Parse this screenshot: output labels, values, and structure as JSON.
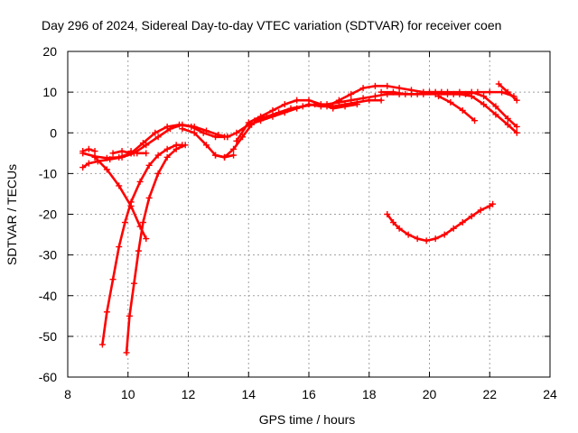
{
  "chart_data": {
    "type": "scatter",
    "title": "Day 296 of 2024, Sidereal Day-to-day VTEC variation (SDTVAR) for receiver coen",
    "xlabel": "GPS time / hours",
    "ylabel": "SDTVAR / TECUs",
    "xlim": [
      8,
      24
    ],
    "ylim": [
      -60,
      20
    ],
    "xticks": [
      8,
      10,
      12,
      14,
      16,
      18,
      20,
      22,
      24
    ],
    "yticks": [
      -60,
      -50,
      -40,
      -30,
      -20,
      -10,
      0,
      10,
      20
    ],
    "xtick_labels": [
      "8",
      "10",
      "12",
      "14",
      "16",
      "18",
      "20",
      "22",
      "24"
    ],
    "ytick_labels": [
      "-60",
      "-50",
      "-40",
      "-30",
      "-20",
      "-10",
      "0",
      "10",
      "20"
    ],
    "grid": true,
    "marker": "+",
    "color": "#ff0000",
    "series": [
      {
        "name": "satellite-1",
        "x": [
          8.5,
          8.7,
          9.0,
          9.4,
          9.8,
          10.2,
          10.6,
          11.0,
          11.4,
          11.8,
          12.2,
          12.6,
          13.0,
          13.3
        ],
        "y": [
          -8.5,
          -7.5,
          -7,
          -6.5,
          -6,
          -5,
          -3,
          -1,
          1,
          2,
          1.5,
          0.5,
          -0.5,
          -1
        ]
      },
      {
        "name": "satellite-2",
        "x": [
          8.5,
          8.9,
          9.3,
          9.7,
          10.1,
          10.5,
          10.9,
          11.3,
          11.7,
          12.1,
          12.5,
          12.9,
          13.2
        ],
        "y": [
          -5,
          -5.8,
          -6.2,
          -6,
          -5,
          -2.5,
          0,
          1.5,
          2,
          1.5,
          0,
          -1,
          -1
        ]
      },
      {
        "name": "satellite-3",
        "x": [
          8.5,
          8.7,
          8.9
        ],
        "y": [
          -4.5,
          -4,
          -4.5
        ]
      },
      {
        "name": "satellite-4",
        "x": [
          9.5,
          9.8,
          10.1
        ],
        "y": [
          -5,
          -4.5,
          -5
        ]
      },
      {
        "name": "satellite-5",
        "x": [
          10.1,
          10.3,
          10.6
        ],
        "y": [
          -4.5,
          -5,
          -5
        ]
      },
      {
        "name": "satellite-6",
        "x": [
          8.9,
          9.3,
          9.7,
          10.1,
          10.4,
          10.6
        ],
        "y": [
          -6,
          -9,
          -13,
          -18,
          -23,
          -26
        ]
      },
      {
        "name": "satellite-7",
        "x": [
          9.15,
          9.3,
          9.5,
          9.7,
          9.9,
          10.1,
          10.4,
          10.7,
          11.0,
          11.3,
          11.6,
          11.8
        ],
        "y": [
          -52,
          -44,
          -36,
          -28,
          -22,
          -17,
          -12,
          -8,
          -5.5,
          -4,
          -3,
          -3
        ]
      },
      {
        "name": "satellite-8",
        "x": [
          9.95,
          10.05,
          10.2,
          10.35,
          10.5,
          10.7,
          11.0,
          11.3,
          11.6,
          11.9
        ],
        "y": [
          -54,
          -45,
          -37,
          -29,
          -22,
          -16,
          -10,
          -6,
          -4,
          -3
        ]
      },
      {
        "name": "satellite-9",
        "x": [
          11.8,
          12.2,
          12.6,
          12.9,
          13.2,
          13.5,
          13.8,
          14.1
        ],
        "y": [
          1,
          0,
          -3,
          -5.5,
          -6,
          -4,
          -1,
          2
        ]
      },
      {
        "name": "satellite-10",
        "x": [
          12.9,
          13.2,
          13.5
        ],
        "y": [
          -5.5,
          -6,
          -5.5
        ]
      },
      {
        "name": "satellite-11",
        "x": [
          13.3,
          13.6,
          14.0,
          14.4,
          14.8,
          15.2,
          15.6,
          16.0,
          16.4,
          16.8,
          17.2,
          17.6,
          18.0,
          18.4
        ],
        "y": [
          -1,
          0,
          2,
          3,
          4,
          5,
          6,
          7,
          6.5,
          6.5,
          7,
          7.5,
          8,
          8
        ]
      },
      {
        "name": "satellite-12",
        "x": [
          13.6,
          14.0,
          14.4,
          14.8,
          15.2,
          15.6,
          16.0,
          16.4,
          16.8,
          17.2,
          17.6
        ],
        "y": [
          -2,
          2.5,
          4,
          5.5,
          7,
          8,
          8,
          7,
          6,
          6.5,
          7
        ]
      },
      {
        "name": "satellite-13",
        "x": [
          14.2,
          14.6,
          15.0,
          15.4,
          15.8,
          16.2,
          16.6,
          17.0,
          17.4,
          17.8,
          18.2,
          18.6,
          19.0,
          19.4,
          19.8,
          20.2,
          20.6,
          21.0,
          21.4,
          21.8,
          22.2,
          22.6,
          22.9
        ],
        "y": [
          3,
          4,
          5,
          6,
          6.5,
          7,
          7,
          7.5,
          8,
          8.5,
          9,
          9.5,
          9.5,
          9.5,
          9.5,
          9.5,
          9.5,
          9.5,
          9,
          7,
          4.5,
          2,
          0
        ]
      },
      {
        "name": "satellite-14",
        "x": [
          16.6,
          17.0,
          17.4,
          17.8,
          18.2,
          18.6,
          19.0,
          19.4,
          19.8,
          20.2,
          20.6,
          21.0,
          21.4,
          21.8,
          22.2,
          22.6,
          22.9
        ],
        "y": [
          6.5,
          8,
          9.5,
          11,
          11.5,
          11.5,
          11,
          10.5,
          10,
          10,
          10,
          10,
          10,
          9,
          6.5,
          3.5,
          1.5
        ]
      },
      {
        "name": "satellite-15",
        "x": [
          18.4,
          18.8,
          19.2,
          19.6,
          20.0,
          20.4,
          20.8,
          21.2,
          21.6,
          22.0,
          22.4,
          22.8
        ],
        "y": [
          10,
          10,
          9.5,
          9.5,
          10,
          10,
          9.5,
          9.5,
          10,
          10,
          10,
          9
        ]
      },
      {
        "name": "satellite-16",
        "x": [
          22.3,
          22.6,
          22.9
        ],
        "y": [
          12,
          10,
          8
        ]
      },
      {
        "name": "satellite-17",
        "x": [
          20.3,
          20.7,
          21.1,
          21.5
        ],
        "y": [
          9,
          7.5,
          5.5,
          3
        ]
      },
      {
        "name": "satellite-18",
        "x": [
          18.6,
          18.8,
          19.0,
          19.3,
          19.6,
          19.9,
          20.2,
          20.5,
          20.8,
          21.1,
          21.4,
          21.7,
          22.0,
          22.1
        ],
        "y": [
          -20,
          -22,
          -23.5,
          -25,
          -26,
          -26.5,
          -26,
          -25,
          -23.5,
          -22,
          -20.5,
          -19,
          -18,
          -17.5
        ]
      }
    ]
  }
}
